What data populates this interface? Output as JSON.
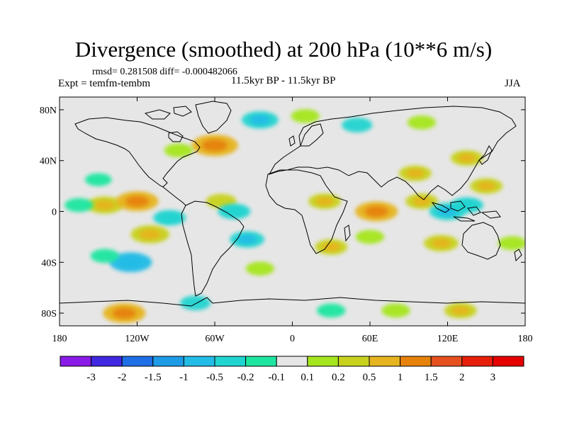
{
  "title": "Divergence (smoothed) at 200 hPa (10**6 m/s)",
  "stats": "rmsd= 0.281508 diff= -0.000482066",
  "experiment": "Expt = temfm-tembm",
  "period": "11.5kyr BP - 11.5kyr BP",
  "season": "JJA",
  "map": {
    "projection": "cylindrical equidistant",
    "lon_range": [
      -180,
      180
    ],
    "lat_range": [
      -90,
      90
    ],
    "background_color": "#e6e6e6",
    "x_tick_labels": [
      "180",
      "120W",
      "60W",
      "0",
      "60E",
      "120E",
      "180"
    ],
    "x_tick_values": [
      -180,
      -120,
      -60,
      0,
      60,
      120,
      180
    ],
    "y_tick_labels": [
      "80N",
      "40N",
      "0",
      "40S",
      "80S"
    ],
    "y_tick_values": [
      80,
      40,
      0,
      -40,
      -80
    ]
  },
  "colorbar": {
    "labels": [
      "-3",
      "-2",
      "-1.5",
      "-1",
      "-0.5",
      "-0.2",
      "-0.1",
      "0.1",
      "0.2",
      "0.5",
      "1",
      "1.5",
      "2",
      "3"
    ],
    "colors": [
      "#8a1ae6",
      "#3f28e0",
      "#1e6ee6",
      "#1e9be6",
      "#23bce6",
      "#20d4d0",
      "#1ee6a0",
      "#e6e6e6",
      "#a6e61e",
      "#c8d21e",
      "#e6b41e",
      "#e6820a",
      "#e6501e",
      "#e61e0a",
      "#e60000"
    ]
  },
  "chart_data": {
    "type": "heatmap",
    "variable": "Divergence (smoothed) at 200 hPa",
    "units": "10**6 m/s",
    "levels": [
      -3,
      -2,
      -1.5,
      -1,
      -0.5,
      -0.2,
      -0.1,
      0.1,
      0.2,
      0.5,
      1,
      1.5,
      2,
      3
    ],
    "anomaly_features": [
      {
        "lon": -145,
        "lat": 5,
        "value": 0.7
      },
      {
        "lon": -120,
        "lat": 8,
        "value": 1.0
      },
      {
        "lon": -55,
        "lat": 8,
        "value": 0.4
      },
      {
        "lon": -60,
        "lat": 52,
        "value": 1.2
      },
      {
        "lon": -88,
        "lat": 48,
        "value": 0.3
      },
      {
        "lon": -25,
        "lat": 72,
        "value": -0.7
      },
      {
        "lon": 10,
        "lat": 75,
        "value": 0.3
      },
      {
        "lon": 50,
        "lat": 68,
        "value": -0.4
      },
      {
        "lon": 100,
        "lat": 70,
        "value": 0.3
      },
      {
        "lon": 25,
        "lat": 8,
        "value": 0.5
      },
      {
        "lon": 65,
        "lat": 0,
        "value": 1.0
      },
      {
        "lon": 95,
        "lat": 30,
        "value": 0.5
      },
      {
        "lon": 100,
        "lat": 8,
        "value": 0.5
      },
      {
        "lon": 120,
        "lat": 0,
        "value": -0.7
      },
      {
        "lon": 135,
        "lat": 5,
        "value": -0.5
      },
      {
        "lon": 135,
        "lat": 42,
        "value": 0.5
      },
      {
        "lon": 150,
        "lat": 20,
        "value": 0.5
      },
      {
        "lon": -150,
        "lat": 25,
        "value": -0.2
      },
      {
        "lon": -165,
        "lat": 5,
        "value": -0.3
      },
      {
        "lon": -95,
        "lat": -5,
        "value": -0.5
      },
      {
        "lon": -45,
        "lat": 0,
        "value": -0.5
      },
      {
        "lon": -35,
        "lat": -22,
        "value": -0.6
      },
      {
        "lon": -110,
        "lat": -18,
        "value": 0.8
      },
      {
        "lon": -125,
        "lat": -40,
        "value": -1.0
      },
      {
        "lon": -145,
        "lat": -35,
        "value": -0.3
      },
      {
        "lon": 30,
        "lat": -28,
        "value": 0.5
      },
      {
        "lon": 60,
        "lat": -20,
        "value": 0.3
      },
      {
        "lon": 115,
        "lat": -25,
        "value": 0.6
      },
      {
        "lon": 170,
        "lat": -25,
        "value": 0.3
      },
      {
        "lon": -25,
        "lat": -45,
        "value": 0.3
      },
      {
        "lon": -130,
        "lat": -80,
        "value": 1.0
      },
      {
        "lon": -75,
        "lat": -72,
        "value": -0.4
      },
      {
        "lon": 30,
        "lat": -78,
        "value": -0.3
      },
      {
        "lon": 80,
        "lat": -78,
        "value": 0.3
      },
      {
        "lon": 130,
        "lat": -78,
        "value": 0.5
      }
    ]
  }
}
